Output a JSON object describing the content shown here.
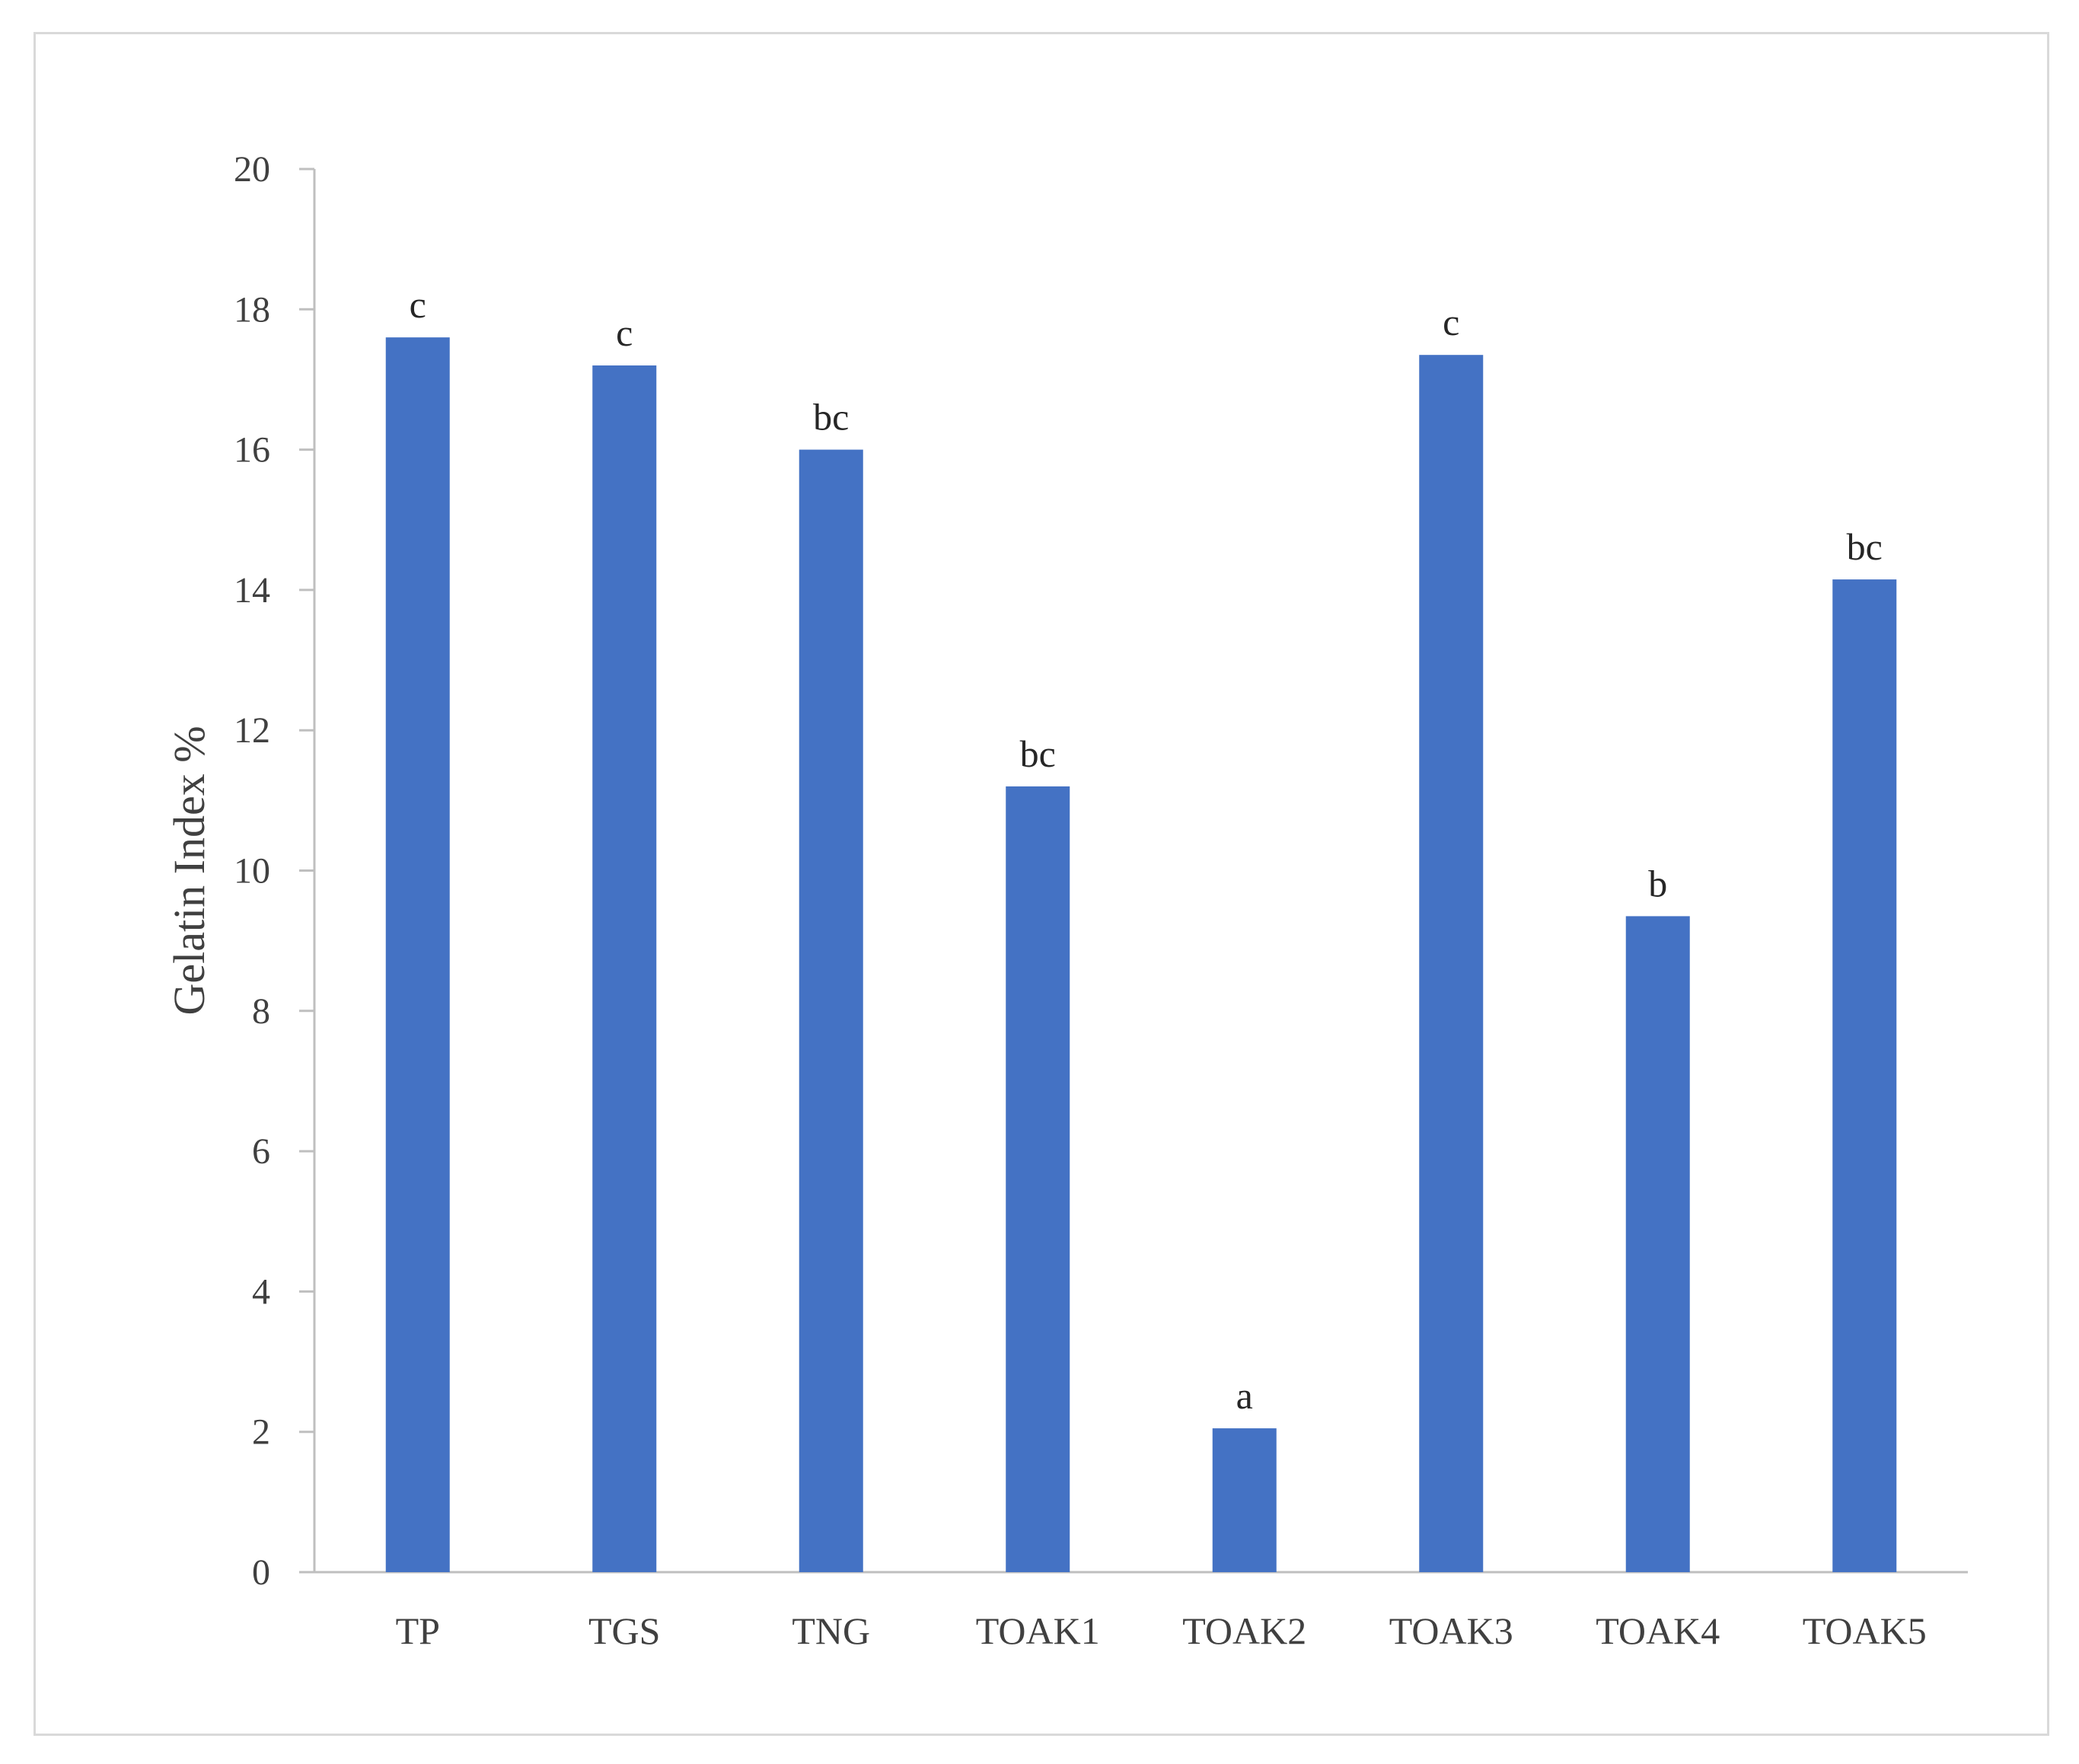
{
  "chart_data": {
    "type": "bar",
    "title": "",
    "xlabel": "",
    "ylabel": "Gelatin Index %",
    "categories": [
      "TP",
      "TGS",
      "TNG",
      "TOAK1",
      "TOAK2",
      "TOAK3",
      "TOAK4",
      "TOAK5"
    ],
    "values": [
      17.6,
      17.2,
      16.0,
      11.2,
      2.05,
      17.35,
      9.35,
      14.15
    ],
    "annotations": [
      "c",
      "c",
      "bc",
      "bc",
      "a",
      "c",
      "b",
      "bc"
    ],
    "ylim": [
      0,
      20
    ],
    "yticks": [
      0,
      2,
      4,
      6,
      8,
      10,
      12,
      14,
      16,
      18,
      20
    ],
    "grid": false,
    "legend": "none",
    "bar_color": "#4472C4",
    "axis_color": "#bfbfbf"
  }
}
